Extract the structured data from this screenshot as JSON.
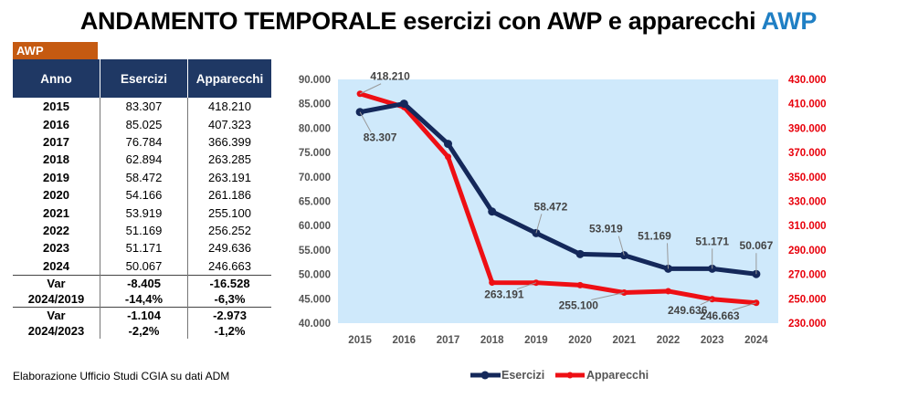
{
  "title": {
    "main": "ANDAMENTO TEMPORALE esercizi con AWP e apparecchi",
    "accent": "AWP"
  },
  "badge": "AWP",
  "table": {
    "headers": [
      "Anno",
      "Esercizi",
      "Apparecchi"
    ],
    "rows": [
      [
        "2015",
        "83.307",
        "418.210"
      ],
      [
        "2016",
        "85.025",
        "407.323"
      ],
      [
        "2017",
        "76.784",
        "366.399"
      ],
      [
        "2018",
        "62.894",
        "263.285"
      ],
      [
        "2019",
        "58.472",
        "263.191"
      ],
      [
        "2020",
        "54.166",
        "261.186"
      ],
      [
        "2021",
        "53.919",
        "255.100"
      ],
      [
        "2022",
        "51.169",
        "256.252"
      ],
      [
        "2023",
        "51.171",
        "249.636"
      ],
      [
        "2024",
        "50.067",
        "246.663"
      ]
    ],
    "var_rows": [
      {
        "label1": "Var",
        "label2": "2024/2019",
        "esercizi_abs": "-8.405",
        "apparecchi_abs": "-16.528",
        "esercizi_pct": "-14,4%",
        "apparecchi_pct": "-6,3%"
      },
      {
        "label1": "Var",
        "label2": "2024/2023",
        "esercizi_abs": "-1.104",
        "apparecchi_abs": "-2.973",
        "esercizi_pct": "-2,2%",
        "apparecchi_pct": "-1,2%"
      }
    ]
  },
  "source": "Elaborazione Ufficio Studi CGIA su dati ADM",
  "chart_data": {
    "type": "line",
    "x": [
      2015,
      2016,
      2017,
      2018,
      2019,
      2020,
      2021,
      2022,
      2023,
      2024
    ],
    "series": [
      {
        "name": "Esercizi",
        "axis": "left",
        "color": "#14285a",
        "values": [
          83307,
          85025,
          76784,
          62894,
          58472,
          54166,
          53919,
          51169,
          51171,
          50067
        ]
      },
      {
        "name": "Apparecchi",
        "axis": "right",
        "color": "#ee0f14",
        "values": [
          418210,
          407323,
          366399,
          263285,
          263191,
          261186,
          255100,
          256252,
          249636,
          246663
        ]
      }
    ],
    "y_left": {
      "min": 40000,
      "max": 90000,
      "step": 5000
    },
    "y_right": {
      "min": 230000,
      "max": 430000,
      "step": 20000
    },
    "background": "#cfe9fb",
    "legend_position": "bottom",
    "data_labels": [
      {
        "series": "Apparecchi",
        "x": 2015,
        "text": "418.210"
      },
      {
        "series": "Esercizi",
        "x": 2015,
        "text": "83.307"
      },
      {
        "series": "Esercizi",
        "x": 2019,
        "text": "58.472"
      },
      {
        "series": "Esercizi",
        "x": 2021,
        "text": "53.919"
      },
      {
        "series": "Esercizi",
        "x": 2022,
        "text": "51.169"
      },
      {
        "series": "Esercizi",
        "x": 2023,
        "text": "51.171"
      },
      {
        "series": "Esercizi",
        "x": 2024,
        "text": "50.067"
      },
      {
        "series": "Apparecchi",
        "x": 2019,
        "text": "263.191"
      },
      {
        "series": "Apparecchi",
        "x": 2021,
        "text": "255.100"
      },
      {
        "series": "Apparecchi",
        "x": 2023,
        "text": "249.636"
      },
      {
        "series": "Apparecchi",
        "x": 2024,
        "text": "246.663"
      }
    ]
  }
}
